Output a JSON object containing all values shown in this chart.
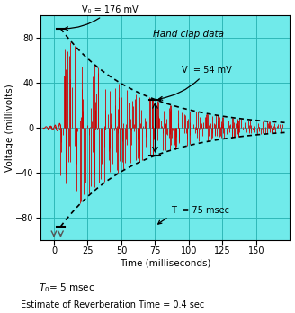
{
  "title": "Hand clap data",
  "xlabel": "Time (milliseconds)",
  "ylabel": "Voltage (millivolts)",
  "xlim": [
    -10,
    175
  ],
  "ylim": [
    -100,
    100
  ],
  "xticks": [
    0,
    25,
    50,
    75,
    100,
    125,
    150
  ],
  "yticks": [
    -80,
    -40,
    0,
    40,
    80
  ],
  "bg_color": "#70eaea",
  "grid_color": "#30b8b8",
  "signal_color": "#cc0000",
  "T0": 5,
  "V0": 88,
  "V0_label": 176,
  "V_at_T": 30,
  "V_at_T_label": 54,
  "T_marker": 75,
  "decay_rate": 0.018,
  "annotation_V0": "V₀ = 176 mV",
  "annotation_V": "V  = 54 mV",
  "annotation_T": "T  = 75 msec",
  "annotation_T0": "T₀= 5 msec",
  "annotation_estimate": "Estimate of Reverberation Time = 0.4 sec",
  "figsize": [
    3.28,
    3.48
  ],
  "dpi": 100
}
